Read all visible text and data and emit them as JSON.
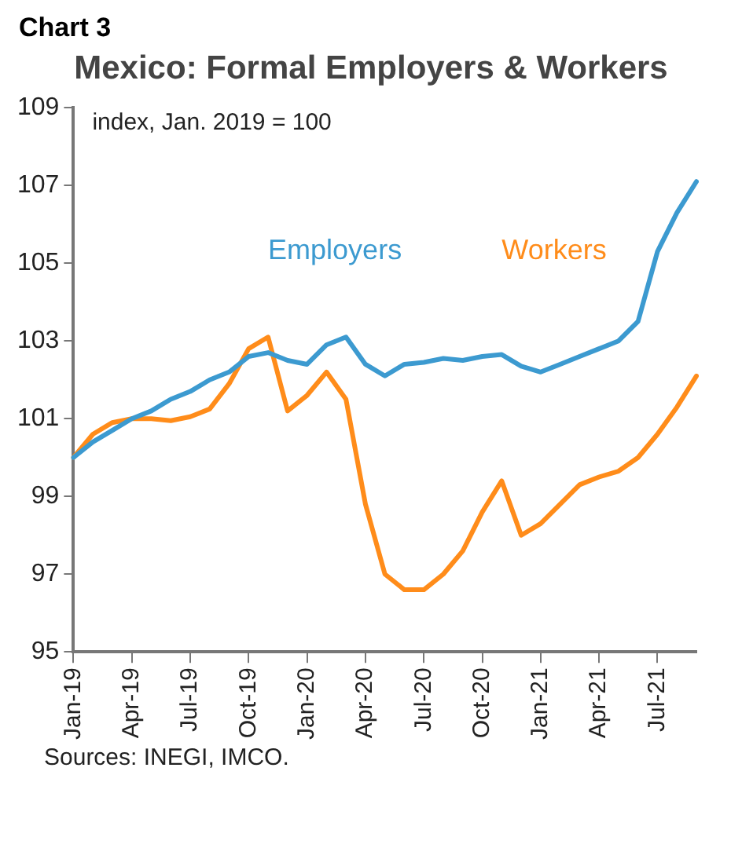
{
  "chart_data": {
    "type": "line",
    "title": "Mexico: Formal Employers & Workers",
    "ylabel": "index, Jan. 2019 = 100",
    "annotations": [
      "Chart 3",
      "Sources: INEGI, IMCO."
    ],
    "categories": [
      "Jan-19",
      null,
      null,
      "Apr-19",
      null,
      null,
      "Jul-19",
      null,
      null,
      "Oct-19",
      null,
      null,
      "Jan-20",
      null,
      null,
      "Apr-20",
      null,
      null,
      "Jul-20",
      null,
      null,
      "Oct-20",
      null,
      null,
      "Jan-21",
      null,
      null,
      "Apr-21",
      null,
      null,
      "Jul-21",
      null,
      null
    ],
    "series": [
      {
        "name": "Employers",
        "color": "#3c9ad0",
        "values": [
          100,
          100.4,
          100.7,
          101.0,
          101.2,
          101.5,
          101.7,
          102.0,
          102.2,
          102.6,
          102.7,
          102.5,
          102.4,
          102.9,
          103.1,
          102.4,
          102.1,
          102.4,
          102.45,
          102.55,
          102.5,
          102.6,
          102.65,
          102.35,
          102.2,
          102.4,
          102.6,
          102.8,
          103.0,
          103.5,
          105.3,
          106.3,
          107.1
        ]
      },
      {
        "name": "Workers",
        "color": "#ff8c1a",
        "values": [
          100,
          100.6,
          100.9,
          101.0,
          101.0,
          100.95,
          101.05,
          101.25,
          101.9,
          102.8,
          103.1,
          101.2,
          101.6,
          102.2,
          101.5,
          98.8,
          97.0,
          96.6,
          96.6,
          97.0,
          97.6,
          98.6,
          99.4,
          98.0,
          98.3,
          98.8,
          99.3,
          99.5,
          99.65,
          100.0,
          100.6,
          101.3,
          102.1
        ]
      }
    ],
    "ylim": [
      95,
      109
    ],
    "yticks": [
      95,
      97,
      99,
      101,
      103,
      105,
      107,
      109
    ],
    "grid": false,
    "legend": false,
    "marker": "none",
    "line_style": "solid"
  }
}
